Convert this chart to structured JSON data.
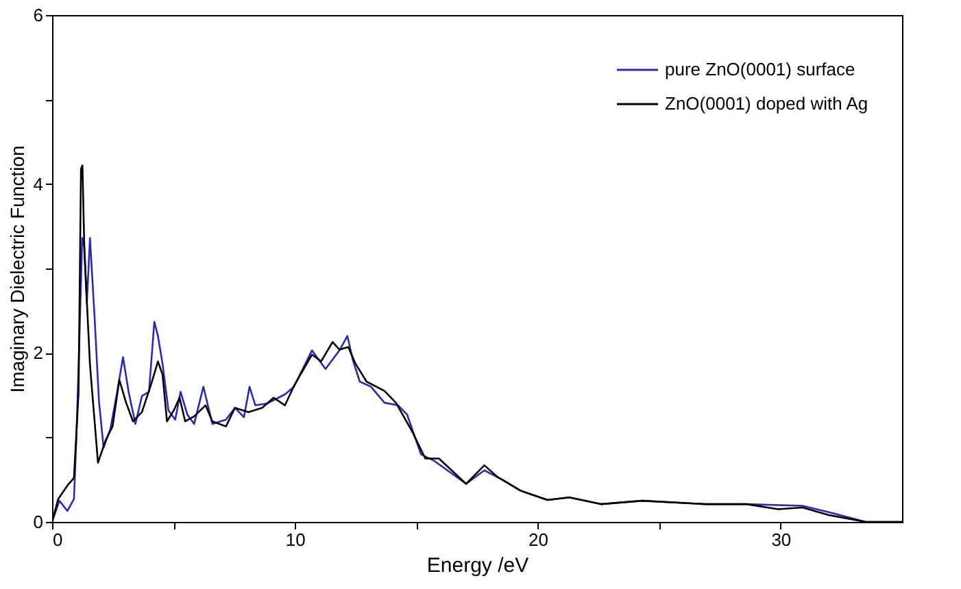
{
  "chart_data": {
    "type": "line",
    "xlabel": "Energy /eV",
    "ylabel": "Imaginary Dielectric Function",
    "xlim": [
      0,
      35
    ],
    "ylim": [
      0,
      6
    ],
    "xticks": [
      0,
      {
        "value": 5,
        "label": null
      },
      10,
      {
        "value": 15,
        "label": null
      },
      20,
      {
        "value": 25,
        "label": null
      },
      30
    ],
    "yticks": [
      0,
      {
        "value": 1,
        "label": null
      },
      2,
      {
        "value": 3,
        "label": null
      },
      4,
      {
        "value": 5,
        "label": null
      },
      6
    ],
    "grid": false,
    "legend": "top right",
    "marker": "none",
    "line_style": "solid",
    "series": [
      {
        "name": "pure ZnO(0001) surface",
        "color": "#2a2ab8",
        "x": [
          0,
          0.3,
          0.63,
          0.9,
          1.0,
          1.15,
          1.24,
          1.33,
          1.43,
          1.56,
          1.75,
          1.93,
          2.12,
          2.4,
          2.68,
          2.92,
          3.15,
          3.43,
          3.7,
          3.99,
          4.21,
          4.36,
          4.55,
          4.79,
          5.07,
          5.29,
          5.57,
          5.85,
          6.23,
          6.6,
          7.16,
          7.53,
          7.9,
          8.13,
          8.37,
          8.84,
          9.59,
          9.96,
          10.7,
          11.26,
          11.83,
          12.16,
          12.39,
          12.67,
          13.13,
          13.69,
          14.25,
          14.62,
          15.19,
          15.75,
          17.05,
          17.8,
          18.54,
          19.29,
          20.4,
          21.3,
          22.6,
          24.3,
          26.9,
          28.6,
          30.9,
          32.2,
          33.5,
          35
        ],
        "values": [
          0,
          0.25,
          0.13,
          0.27,
          0.99,
          2.42,
          3.36,
          3.25,
          2.59,
          3.36,
          2.42,
          1.43,
          0.88,
          1.1,
          1.54,
          1.95,
          1.54,
          1.16,
          1.49,
          1.54,
          2.37,
          2.2,
          1.87,
          1.32,
          1.21,
          1.54,
          1.27,
          1.16,
          1.6,
          1.16,
          1.21,
          1.35,
          1.24,
          1.6,
          1.38,
          1.4,
          1.51,
          1.6,
          2.03,
          1.81,
          2.03,
          2.2,
          1.91,
          1.66,
          1.6,
          1.41,
          1.38,
          1.27,
          0.8,
          0.72,
          0.45,
          0.61,
          0.5,
          0.37,
          0.26,
          0.29,
          0.21,
          0.25,
          0.21,
          0.21,
          0.19,
          0.1,
          0.0,
          0
        ]
      },
      {
        "name": "ZnO(0001) doped with Ag",
        "color": "#000000",
        "x": [
          0,
          0.25,
          0.63,
          0.9,
          1.09,
          1.19,
          1.25,
          1.33,
          1.56,
          1.89,
          2.21,
          2.49,
          2.77,
          3.05,
          3.33,
          3.7,
          4.08,
          4.36,
          4.55,
          4.73,
          5.01,
          5.25,
          5.48,
          5.85,
          6.32,
          6.6,
          7.16,
          7.53,
          8.09,
          8.65,
          9.12,
          9.59,
          9.96,
          10.7,
          11.08,
          11.55,
          11.83,
          12.2,
          12.48,
          12.95,
          13.69,
          14.16,
          14.81,
          15.37,
          15.93,
          17.05,
          17.8,
          18.35,
          19.29,
          20.4,
          21.3,
          22.6,
          24.3,
          26.9,
          28.6,
          29.9,
          30.9,
          32.0,
          33.5,
          35
        ],
        "values": [
          0,
          0.27,
          0.43,
          0.52,
          1.53,
          4.18,
          4.22,
          3.2,
          1.86,
          0.7,
          0.97,
          1.13,
          1.68,
          1.41,
          1.19,
          1.3,
          1.63,
          1.9,
          1.74,
          1.19,
          1.32,
          1.47,
          1.19,
          1.25,
          1.38,
          1.19,
          1.13,
          1.35,
          1.3,
          1.35,
          1.47,
          1.38,
          1.61,
          1.98,
          1.9,
          2.13,
          2.04,
          2.07,
          1.88,
          1.66,
          1.55,
          1.41,
          1.08,
          0.75,
          0.75,
          0.45,
          0.67,
          0.53,
          0.37,
          0.26,
          0.29,
          0.21,
          0.25,
          0.21,
          0.21,
          0.15,
          0.17,
          0.08,
          0.0,
          0
        ]
      }
    ]
  }
}
